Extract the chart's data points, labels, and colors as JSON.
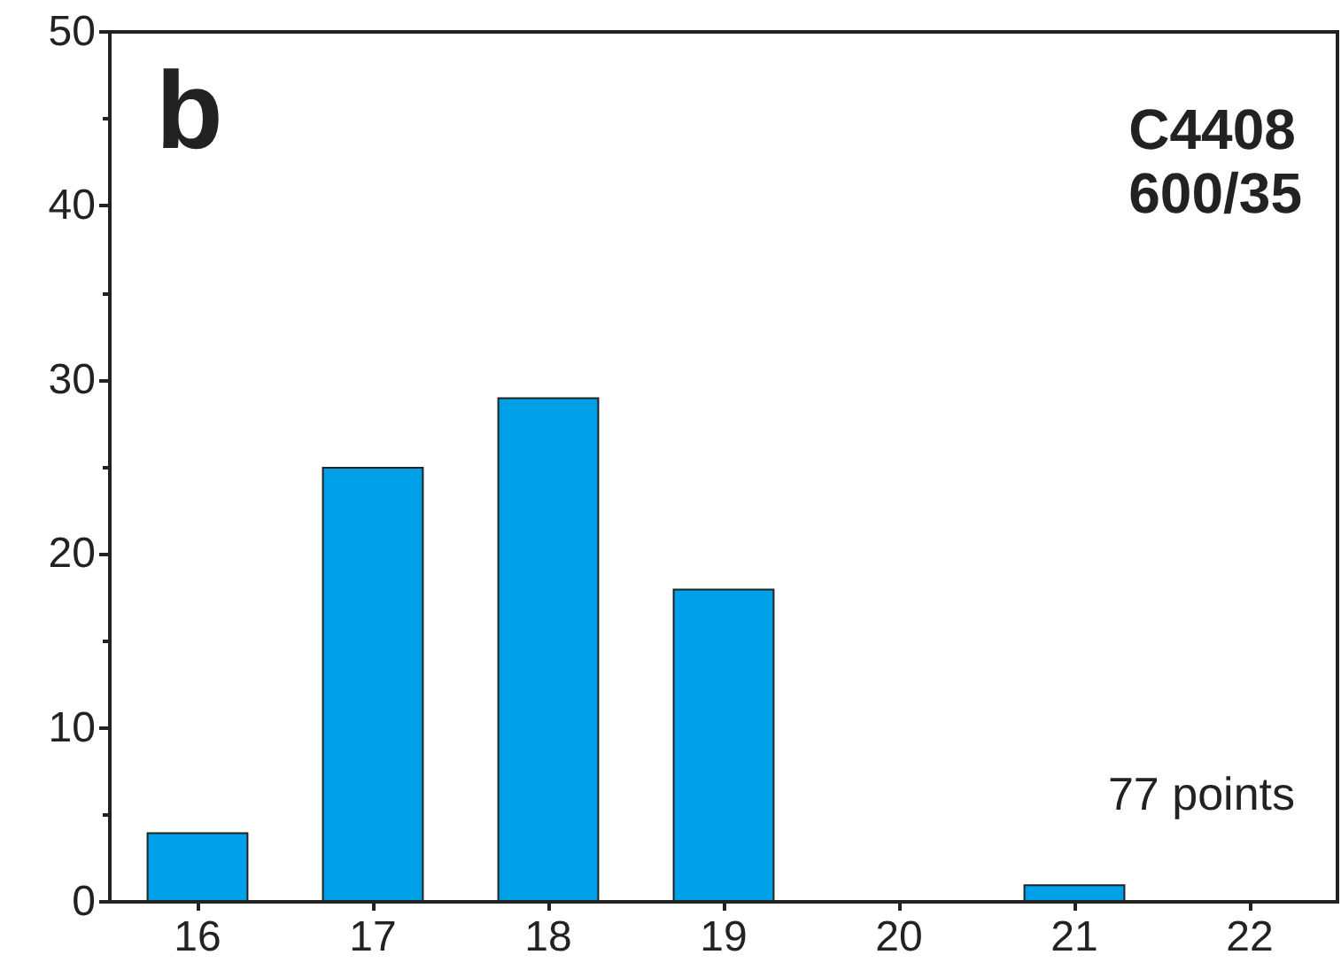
{
  "chart_data": {
    "type": "bar",
    "categories": [
      "16",
      "17",
      "18",
      "19",
      "20",
      "21",
      "22"
    ],
    "values": [
      4,
      25,
      29,
      18,
      0,
      1,
      0
    ],
    "color": "#00a0e9",
    "ylim": [
      0,
      50
    ],
    "yticks": [
      0,
      10,
      20,
      30,
      40,
      50
    ],
    "grid": false,
    "annotations": [
      "b",
      "C4408\n600/35",
      "77 points"
    ]
  }
}
